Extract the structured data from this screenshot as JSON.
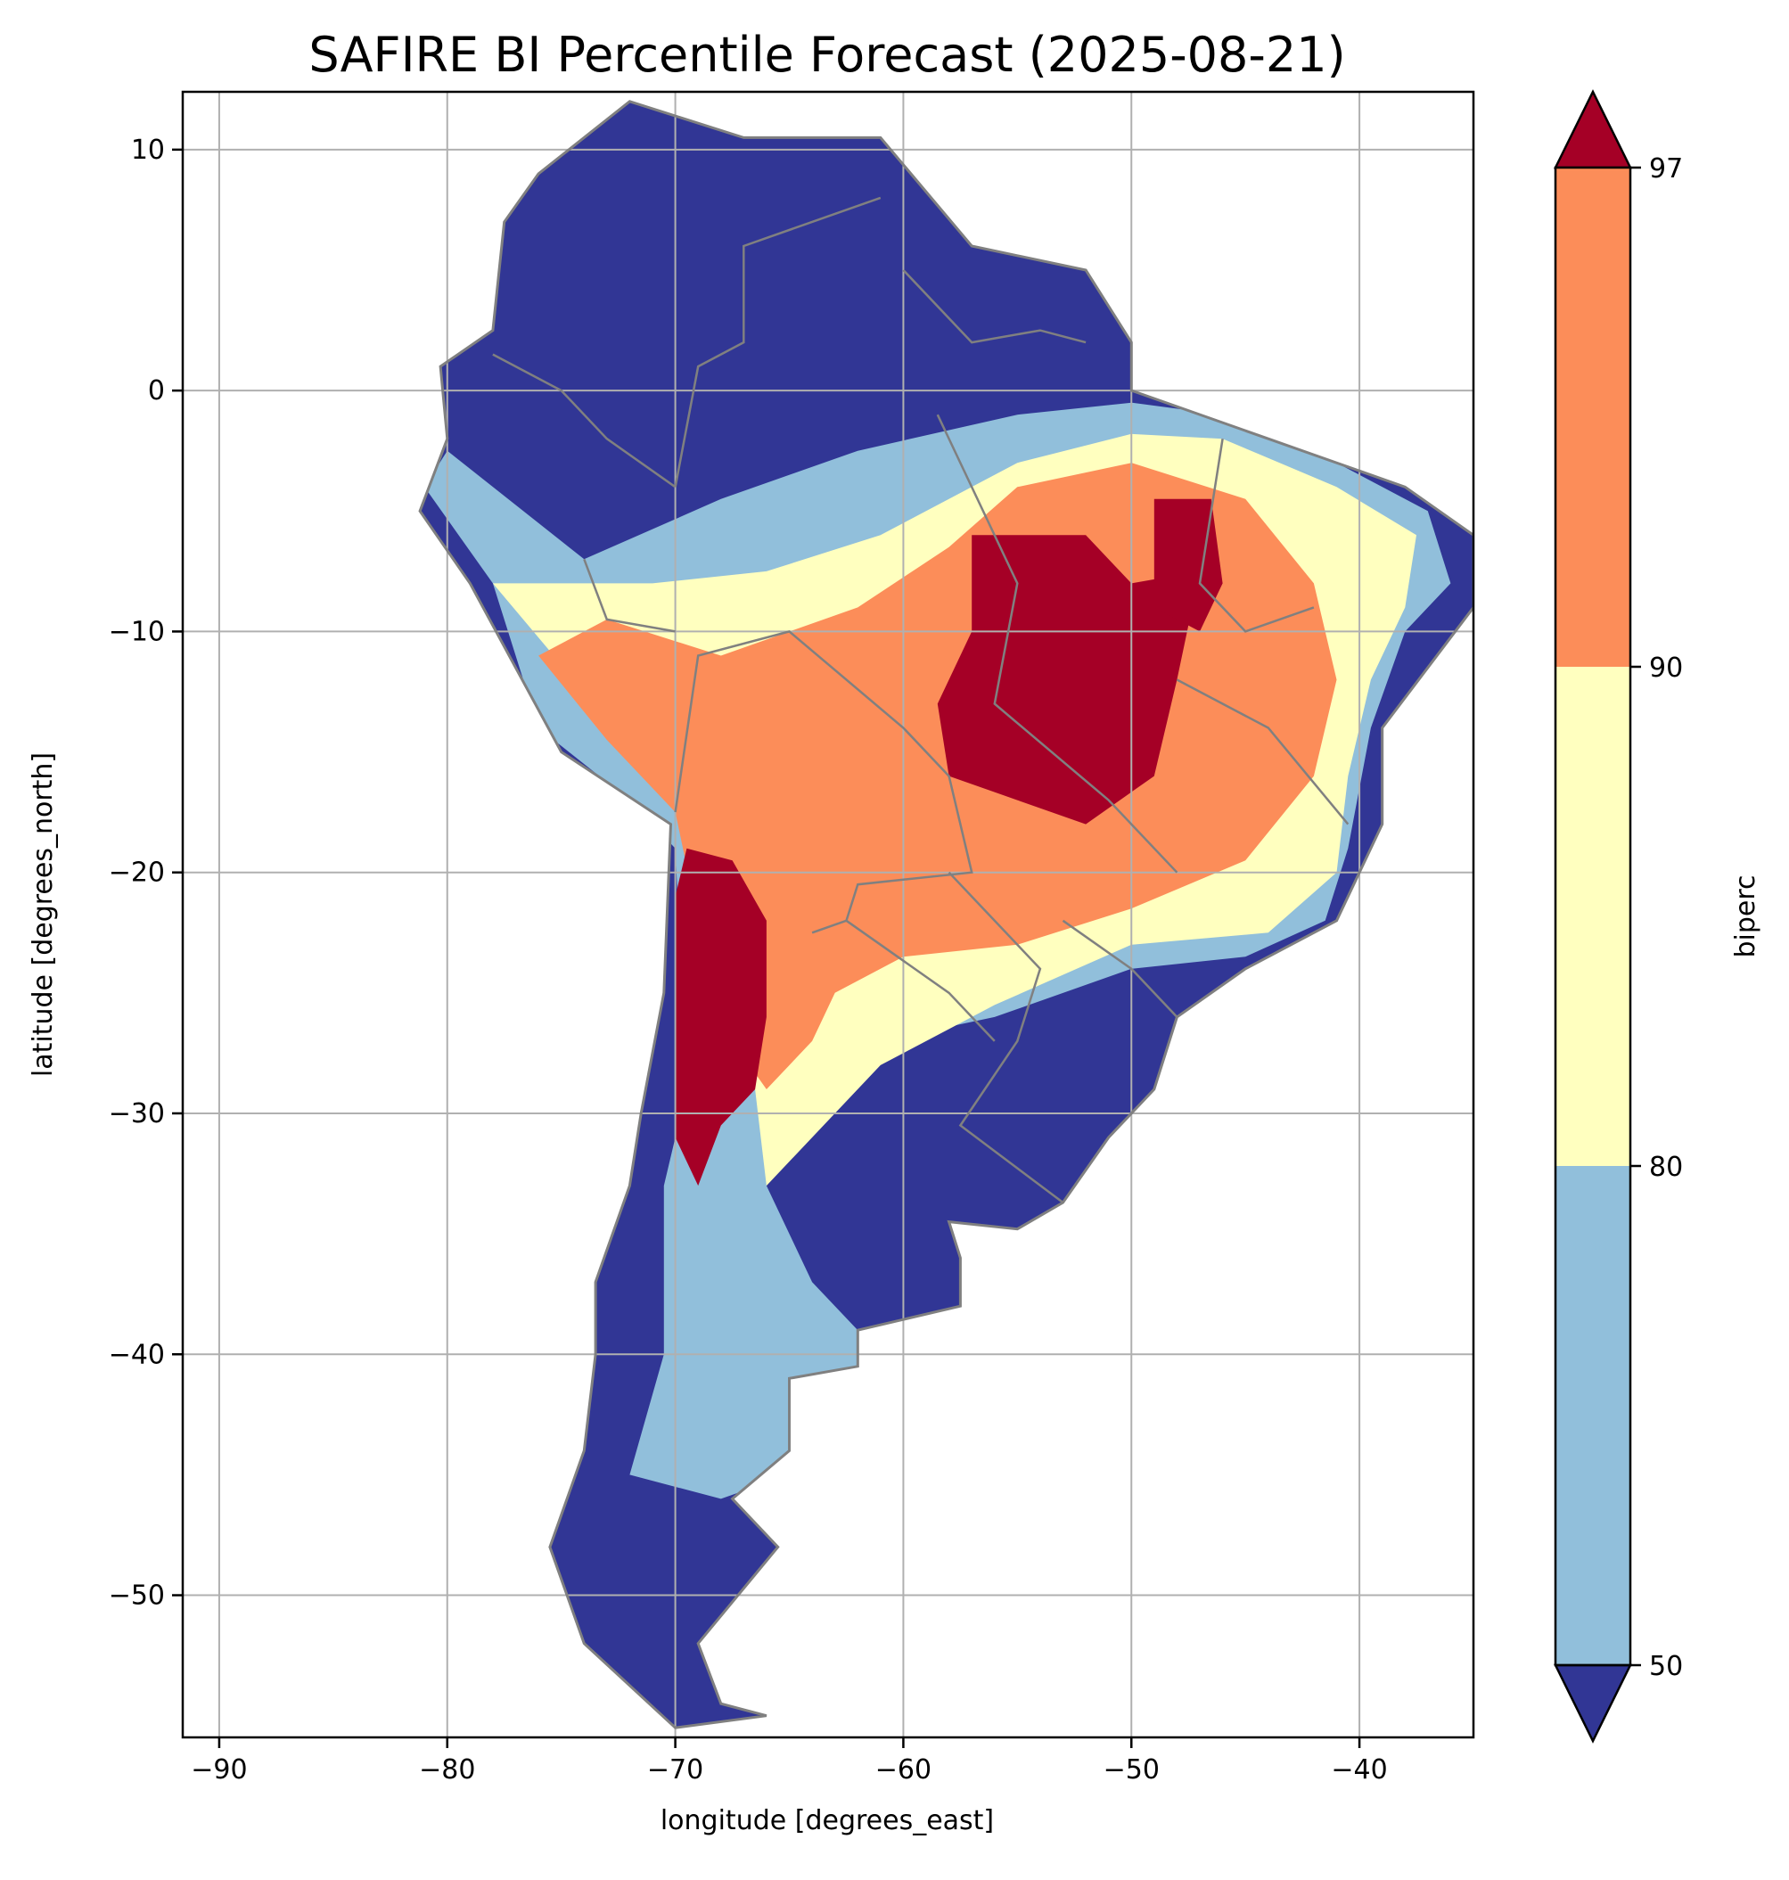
{
  "title": "SAFIRE BI Percentile Forecast (2025-08-21)",
  "xlabel": "longitude [degrees_east]",
  "ylabel": "latitude [degrees_north]",
  "colorbar_label": "biperc",
  "colors": {
    "below_50": "#313695",
    "band_50_80": "#91bfdb",
    "band_80_90": "#ffffbf",
    "band_90_97": "#fc8d59",
    "above_97": "#a50026",
    "borders": "#808080",
    "grid": "#b0b0b0"
  },
  "chart_data": {
    "type": "heatmap",
    "title": "SAFIRE BI Percentile Forecast (2025-08-21)",
    "xlabel": "longitude [degrees_east]",
    "ylabel": "latitude [degrees_north]",
    "xlim": [
      -91.6,
      -35
    ],
    "ylim": [
      -55.9,
      12.4
    ],
    "xticks": [
      -90,
      -80,
      -70,
      -60,
      -50,
      -40
    ],
    "xtick_labels": [
      "−90",
      "−80",
      "−70",
      "−60",
      "−50",
      "−40"
    ],
    "yticks": [
      10,
      0,
      -10,
      -20,
      -30,
      -40,
      -50
    ],
    "ytick_labels": [
      "10",
      "0",
      "−10",
      "−20",
      "−30",
      "−40",
      "−50"
    ],
    "grid": true,
    "colorbar": {
      "label": "biperc",
      "boundaries": [
        50,
        80,
        90,
        97
      ],
      "tick_labels": [
        "50",
        "80",
        "90",
        "97"
      ],
      "extend": "both"
    },
    "regions": [
      {
        "name": "mainland",
        "class": "below_50",
        "points": [
          [
            -72,
            12
          ],
          [
            -67,
            10.5
          ],
          [
            -61,
            10.5
          ],
          [
            -57,
            6
          ],
          [
            -52,
            5
          ],
          [
            -50,
            2
          ],
          [
            -50,
            0
          ],
          [
            -44,
            -2
          ],
          [
            -38,
            -4
          ],
          [
            -35,
            -6
          ],
          [
            -35,
            -9
          ],
          [
            -39,
            -14
          ],
          [
            -39,
            -18
          ],
          [
            -41,
            -22
          ],
          [
            -45,
            -24
          ],
          [
            -48,
            -26
          ],
          [
            -49,
            -29
          ],
          [
            -51,
            -31
          ],
          [
            -53,
            -33.7
          ],
          [
            -55,
            -34.8
          ],
          [
            -58,
            -34.5
          ],
          [
            -57.5,
            -36
          ],
          [
            -57.5,
            -38
          ],
          [
            -62,
            -39
          ],
          [
            -62,
            -40.5
          ],
          [
            -65,
            -41
          ],
          [
            -65,
            -44
          ],
          [
            -67.5,
            -46
          ],
          [
            -65.5,
            -48
          ],
          [
            -69,
            -52
          ],
          [
            -68,
            -54.5
          ],
          [
            -66,
            -55
          ],
          [
            -70,
            -55.5
          ],
          [
            -74,
            -52
          ],
          [
            -75.5,
            -48
          ],
          [
            -74,
            -44
          ],
          [
            -73.5,
            -40
          ],
          [
            -73.5,
            -37
          ],
          [
            -72,
            -33
          ],
          [
            -71.5,
            -30
          ],
          [
            -70.5,
            -25
          ],
          [
            -70.2,
            -18
          ],
          [
            -75,
            -15
          ],
          [
            -79,
            -8
          ],
          [
            -81.2,
            -5
          ],
          [
            -80,
            -2
          ],
          [
            -80.3,
            1
          ],
          [
            -78,
            2.5
          ],
          [
            -77.5,
            7
          ],
          [
            -76,
            9
          ],
          [
            -72,
            12
          ]
        ]
      },
      {
        "name": "lightblue-central",
        "class": "band_50_80",
        "points": [
          [
            -81,
            -4
          ],
          [
            -78,
            -8
          ],
          [
            -76,
            -14
          ],
          [
            -72,
            -17
          ],
          [
            -70,
            -19
          ],
          [
            -69.5,
            -29
          ],
          [
            -70.5,
            -33
          ],
          [
            -70.5,
            -40
          ],
          [
            -72,
            -45
          ],
          [
            -68,
            -46
          ],
          [
            -65,
            -45
          ],
          [
            -65,
            -41
          ],
          [
            -62,
            -40.5
          ],
          [
            -62,
            -39
          ],
          [
            -64,
            -37
          ],
          [
            -66,
            -33
          ],
          [
            -64,
            -30
          ],
          [
            -61,
            -27
          ],
          [
            -56,
            -26
          ],
          [
            -50,
            -24
          ],
          [
            -45,
            -23.5
          ],
          [
            -41.5,
            -22
          ],
          [
            -40.5,
            -19
          ],
          [
            -39.5,
            -14
          ],
          [
            -38,
            -10
          ],
          [
            -36,
            -8
          ],
          [
            -37,
            -5
          ],
          [
            -41,
            -3
          ],
          [
            -46,
            -1
          ],
          [
            -50,
            -0.5
          ],
          [
            -55,
            -1
          ],
          [
            -62,
            -2.5
          ],
          [
            -68,
            -4.5
          ],
          [
            -74,
            -7
          ],
          [
            -80,
            -2.5
          ],
          [
            -81,
            -4
          ]
        ]
      },
      {
        "name": "yellow-central",
        "class": "band_80_90",
        "points": [
          [
            -78,
            -8
          ],
          [
            -74,
            -12.5
          ],
          [
            -70,
            -17
          ],
          [
            -69,
            -22
          ],
          [
            -66.5,
            -29
          ],
          [
            -66,
            -33
          ],
          [
            -64,
            -31
          ],
          [
            -61,
            -28
          ],
          [
            -56,
            -25.5
          ],
          [
            -50,
            -23
          ],
          [
            -44,
            -22.5
          ],
          [
            -41,
            -20
          ],
          [
            -40.5,
            -16
          ],
          [
            -39.5,
            -12
          ],
          [
            -38,
            -9
          ],
          [
            -37.5,
            -6
          ],
          [
            -41,
            -4
          ],
          [
            -46,
            -2
          ],
          [
            -50,
            -1.8
          ],
          [
            -55,
            -3
          ],
          [
            -61,
            -6
          ],
          [
            -66,
            -7.5
          ],
          [
            -71,
            -8
          ],
          [
            -75,
            -8
          ],
          [
            -78,
            -8
          ]
        ]
      },
      {
        "name": "orange-central",
        "class": "band_90_97",
        "points": [
          [
            -76,
            -11
          ],
          [
            -73,
            -14.5
          ],
          [
            -70,
            -17.5
          ],
          [
            -69,
            -22
          ],
          [
            -67.5,
            -27
          ],
          [
            -66,
            -29
          ],
          [
            -64,
            -27
          ],
          [
            -63,
            -25
          ],
          [
            -60,
            -23.5
          ],
          [
            -55,
            -23
          ],
          [
            -50,
            -21.5
          ],
          [
            -45,
            -19.5
          ],
          [
            -42,
            -16
          ],
          [
            -41,
            -12
          ],
          [
            -42,
            -8
          ],
          [
            -45,
            -4.5
          ],
          [
            -50,
            -3
          ],
          [
            -55,
            -4
          ],
          [
            -58,
            -6.5
          ],
          [
            -62,
            -9
          ],
          [
            -68,
            -11
          ],
          [
            -73,
            -9.5
          ],
          [
            -76,
            -11
          ]
        ]
      },
      {
        "name": "darkred-east-1",
        "class": "above_97",
        "points": [
          [
            -57,
            -6
          ],
          [
            -52,
            -6
          ],
          [
            -50,
            -8
          ],
          [
            -47,
            -7.5
          ],
          [
            -48,
            -12
          ],
          [
            -49,
            -16
          ],
          [
            -52,
            -18
          ],
          [
            -55,
            -17
          ],
          [
            -58,
            -16
          ],
          [
            -58.5,
            -13
          ],
          [
            -57,
            -10
          ],
          [
            -57,
            -6
          ]
        ]
      },
      {
        "name": "darkred-east-2",
        "class": "above_97",
        "points": [
          [
            -49,
            -4.5
          ],
          [
            -46.5,
            -4.5
          ],
          [
            -46,
            -8
          ],
          [
            -47,
            -10
          ],
          [
            -49,
            -9
          ],
          [
            -49,
            -4.5
          ]
        ]
      },
      {
        "name": "darkred-andes",
        "class": "above_97",
        "points": [
          [
            -69.5,
            -19
          ],
          [
            -67.5,
            -19.5
          ],
          [
            -66,
            -22
          ],
          [
            -66,
            -26
          ],
          [
            -66.5,
            -29
          ],
          [
            -68,
            -30.5
          ],
          [
            -69,
            -33
          ],
          [
            -70,
            -31
          ],
          [
            -70,
            -26
          ],
          [
            -70,
            -21
          ],
          [
            -69.5,
            -19
          ]
        ]
      }
    ]
  }
}
